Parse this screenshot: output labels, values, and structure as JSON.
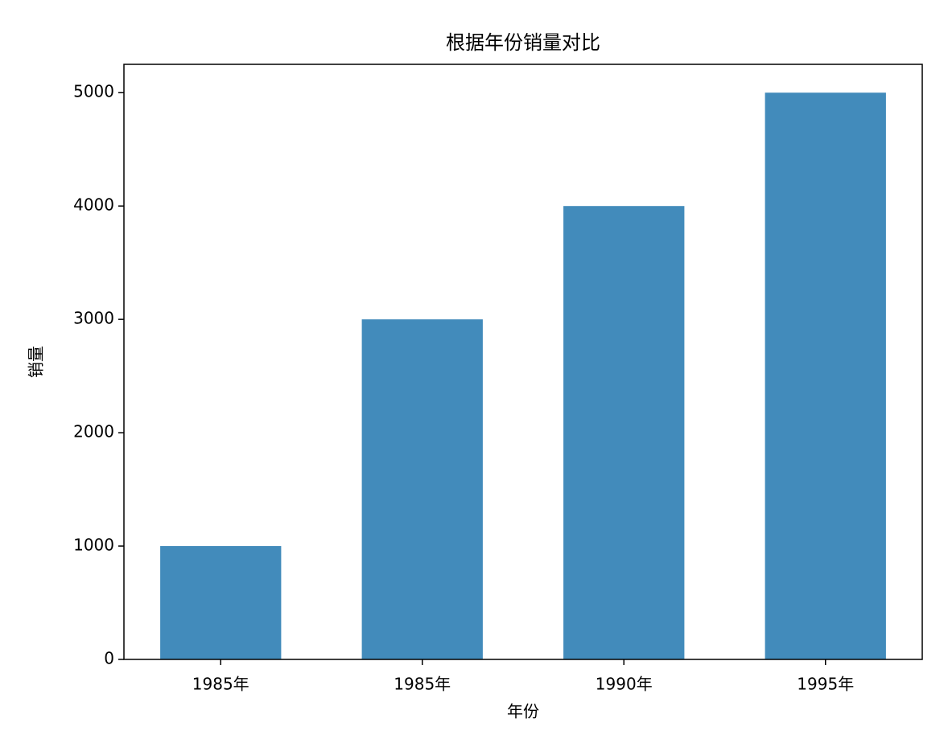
{
  "chart_data": {
    "type": "bar",
    "title": "根据年份销量对比",
    "xlabel": "年份",
    "ylabel": "销量",
    "categories": [
      "1985年",
      "1985年",
      "1990年",
      "1995年"
    ],
    "values": [
      1000,
      3000,
      4000,
      5000
    ],
    "color": "#428bbb",
    "ylim": [
      0,
      5250
    ],
    "yticks": [
      0,
      1000,
      2000,
      3000,
      4000,
      5000
    ],
    "grid": false
  }
}
